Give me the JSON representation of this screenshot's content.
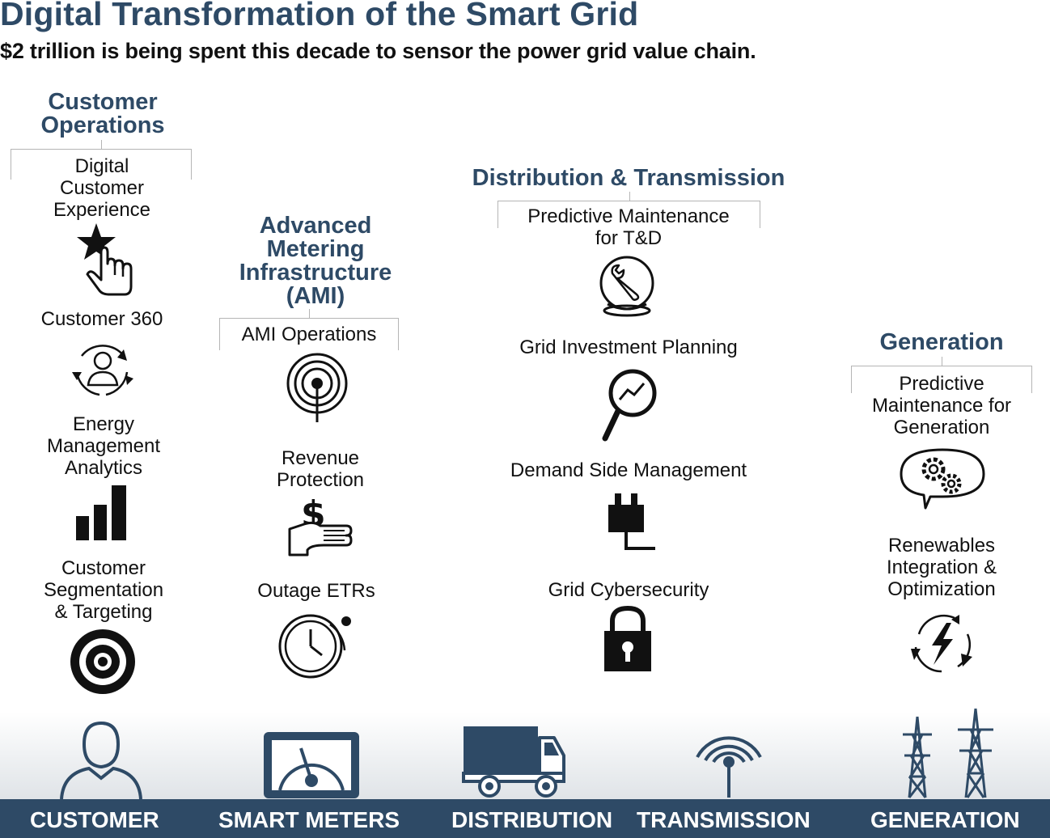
{
  "header": {
    "title": "Digital Transformation of the Smart Grid",
    "subtitle": "$2 trillion is being spent this decade to sensor the power grid value chain."
  },
  "sections": {
    "customer_operations": {
      "title": "Customer\nOperations",
      "items": [
        {
          "label": "Digital\nCustomer\nExperience",
          "icon": "star-hand-icon"
        },
        {
          "label": "Customer 360",
          "icon": "person-cycle-icon"
        },
        {
          "label": "Energy\nManagement\nAnalytics",
          "icon": "bar-chart-icon"
        },
        {
          "label": "Customer\nSegmentation\n& Targeting",
          "icon": "target-icon"
        }
      ]
    },
    "ami": {
      "title": "Advanced\nMetering\nInfrastructure\n(AMI)",
      "items": [
        {
          "label": "AMI Operations",
          "icon": "signal-target-icon"
        },
        {
          "label": "Revenue\nProtection",
          "icon": "dollar-hand-icon"
        },
        {
          "label": "Outage ETRs",
          "icon": "clock-icon"
        }
      ]
    },
    "distribution_transmission": {
      "title": "Distribution & Transmission",
      "items": [
        {
          "label": "Predictive Maintenance\nfor T&D",
          "icon": "wrench-globe-icon"
        },
        {
          "label": "Grid Investment Planning",
          "icon": "magnifier-chart-icon"
        },
        {
          "label": "Demand Side Management",
          "icon": "plug-icon"
        },
        {
          "label": "Grid Cybersecurity",
          "icon": "padlock-icon"
        }
      ]
    },
    "generation": {
      "title": "Generation",
      "items": [
        {
          "label": "Predictive\nMaintenance for\nGeneration",
          "icon": "gears-bubble-icon"
        },
        {
          "label": "Renewables\nIntegration &\nOptimization",
          "icon": "lightning-cycle-icon"
        }
      ]
    }
  },
  "value_chain": [
    "CUSTOMER",
    "SMART METERS",
    "DISTRIBUTION",
    "TRANSMISSION",
    "GENERATION"
  ],
  "colors": {
    "accent": "#2e4a66",
    "text": "#111111",
    "bracket": "#b5b5b5"
  }
}
